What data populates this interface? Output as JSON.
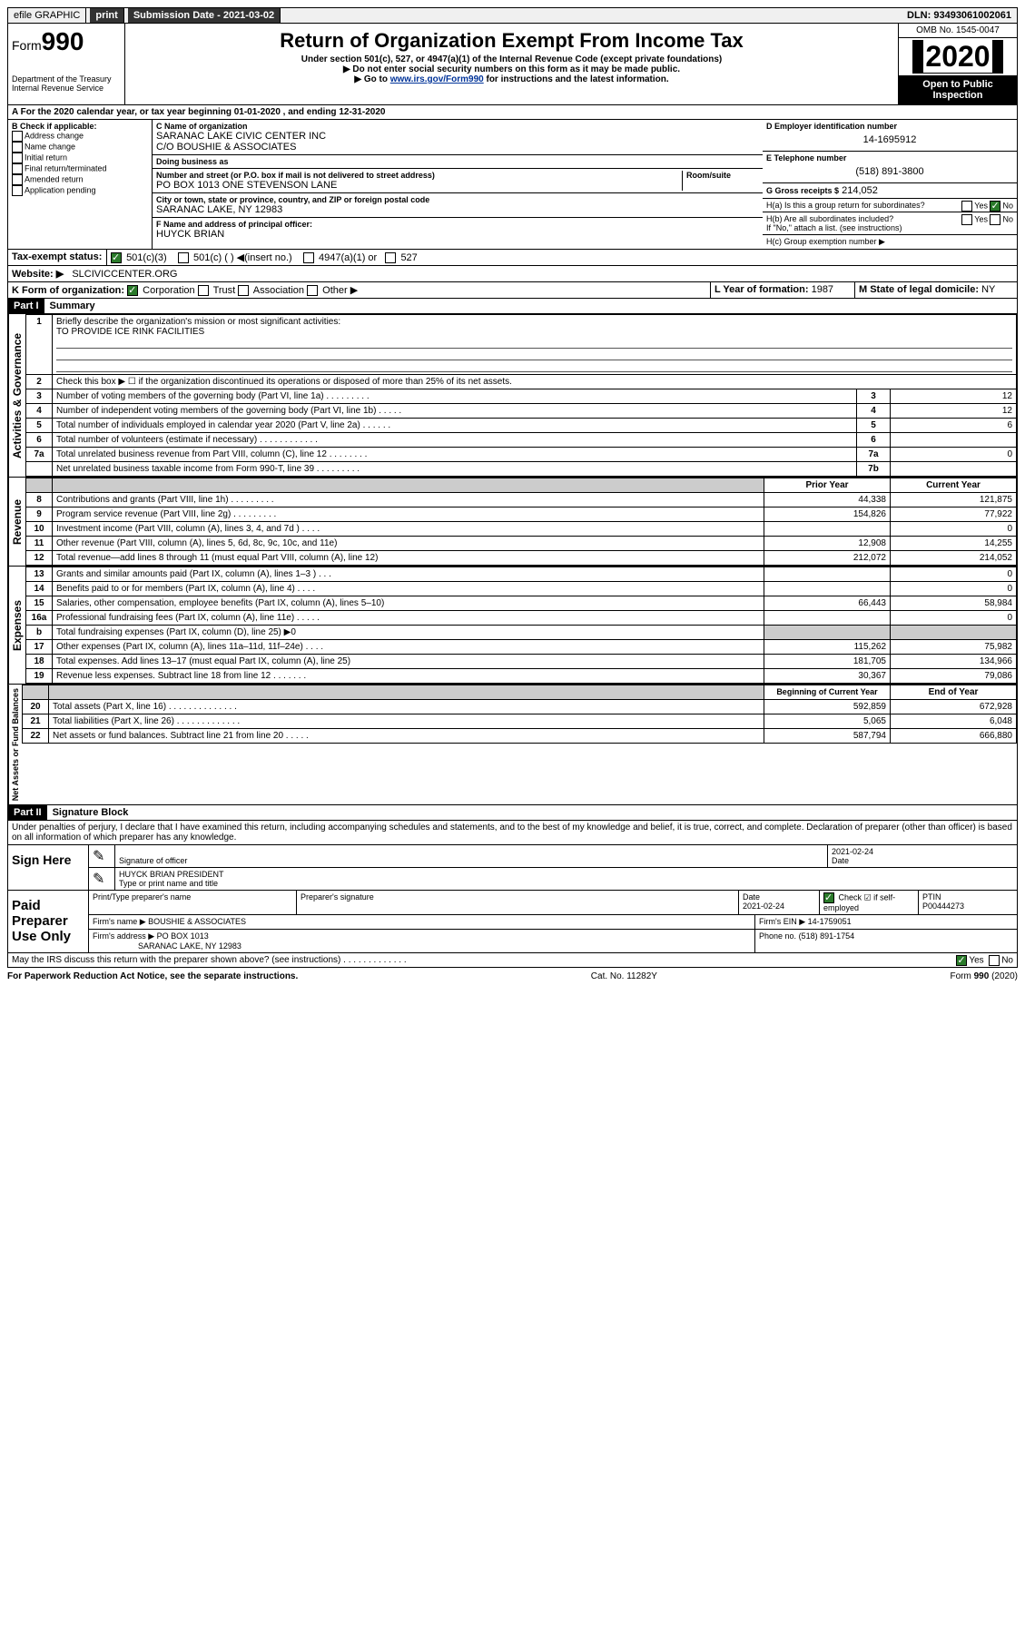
{
  "topbar": {
    "efile": "efile GRAPHIC",
    "print": "print",
    "sub_label": "Submission Date - 2021-03-02",
    "dln": "DLN: 93493061002061"
  },
  "header": {
    "form_prefix": "Form",
    "form_num": "990",
    "dept": "Department of the Treasury",
    "irs": "Internal Revenue Service",
    "title": "Return of Organization Exempt From Income Tax",
    "subtitle": "Under section 501(c), 527, or 4947(a)(1) of the Internal Revenue Code (except private foundations)",
    "note1": "▶ Do not enter social security numbers on this form as it may be made public.",
    "note2_pre": "▶ Go to ",
    "note2_link": "www.irs.gov/Form990",
    "note2_post": " for instructions and the latest information.",
    "omb": "OMB No. 1545-0047",
    "year": "2020",
    "open": "Open to Public Inspection"
  },
  "period": {
    "text": "A For the 2020 calendar year, or tax year beginning 01-01-2020    , and ending 12-31-2020"
  },
  "sectionB": {
    "title": "B Check if applicable:",
    "items": [
      "Address change",
      "Name change",
      "Initial return",
      "Final return/terminated",
      "Amended return",
      "Application pending"
    ]
  },
  "org": {
    "c_label": "C Name of organization",
    "name": "SARANAC LAKE CIVIC CENTER INC",
    "care_of": "C/O BOUSHIE & ASSOCIATES",
    "dba_label": "Doing business as",
    "addr_label": "Number and street (or P.O. box if mail is not delivered to street address)",
    "room_label": "Room/suite",
    "addr": "PO BOX 1013 ONE STEVENSON LANE",
    "city_label": "City or town, state or province, country, and ZIP or foreign postal code",
    "city": "SARANAC LAKE, NY  12983",
    "f_label": "F Name and address of principal officer:",
    "officer": "HUYCK BRIAN"
  },
  "right": {
    "d_label": "D Employer identification number",
    "ein": "14-1695912",
    "e_label": "E Telephone number",
    "phone": "(518) 891-3800",
    "g_label": "G Gross receipts $",
    "gross": "214,052",
    "ha": "H(a)  Is this a group return for subordinates?",
    "hb": "H(b)  Are all subordinates included?",
    "hb_note": "If \"No,\" attach a list. (see instructions)",
    "hc": "H(c)  Group exemption number ▶",
    "yes": "Yes",
    "no": "No"
  },
  "status": {
    "i_label": "Tax-exempt status:",
    "c3": "501(c)(3)",
    "c_other": "501(c) (  ) ◀(insert no.)",
    "a1": "4947(a)(1) or",
    "s527": "527",
    "j_label": "Website: ▶",
    "website": "SLCIVICCENTER.ORG",
    "k_label": "K Form of organization:",
    "corp": "Corporation",
    "trust": "Trust",
    "assoc": "Association",
    "other": "Other ▶",
    "l_label": "L Year of formation:",
    "year": "1987",
    "m_label": "M State of legal domicile:",
    "state": "NY"
  },
  "part1": {
    "header": "Part I",
    "title": "Summary",
    "q1": "Briefly describe the organization's mission or most significant activities:",
    "mission": "TO PROVIDE ICE RINK FACILITIES",
    "q2": "Check this box ▶ ☐  if the organization discontinued its operations or disposed of more than 25% of its net assets.",
    "lines": [
      {
        "n": "3",
        "t": "Number of voting members of the governing body (Part VI, line 1a)  .  .  .  .  .  .  .  .  .",
        "box": "3",
        "v": "12"
      },
      {
        "n": "4",
        "t": "Number of independent voting members of the governing body (Part VI, line 1b)  .  .  .  .  .",
        "box": "4",
        "v": "12"
      },
      {
        "n": "5",
        "t": "Total number of individuals employed in calendar year 2020 (Part V, line 2a)  .  .  .  .  .  .",
        "box": "5",
        "v": "6"
      },
      {
        "n": "6",
        "t": "Total number of volunteers (estimate if necessary)  .  .  .  .  .  .  .  .  .  .  .  .",
        "box": "6",
        "v": ""
      },
      {
        "n": "7a",
        "t": "Total unrelated business revenue from Part VIII, column (C), line 12  .  .  .  .  .  .  .  .",
        "box": "7a",
        "v": "0"
      },
      {
        "n": "",
        "t": "Net unrelated business taxable income from Form 990-T, line 39  .  .  .  .  .  .  .  .  .",
        "box": "7b",
        "v": ""
      }
    ],
    "prior": "Prior Year",
    "current": "Current Year",
    "rev": [
      {
        "n": "8",
        "t": "Contributions and grants (Part VIII, line 1h)  .  .  .  .  .  .  .  .  .",
        "p": "44,338",
        "c": "121,875"
      },
      {
        "n": "9",
        "t": "Program service revenue (Part VIII, line 2g)  .  .  .  .  .  .  .  .  .",
        "p": "154,826",
        "c": "77,922"
      },
      {
        "n": "10",
        "t": "Investment income (Part VIII, column (A), lines 3, 4, and 7d )  .  .  .  .",
        "p": "",
        "c": "0"
      },
      {
        "n": "11",
        "t": "Other revenue (Part VIII, column (A), lines 5, 6d, 8c, 9c, 10c, and 11e)",
        "p": "12,908",
        "c": "14,255"
      },
      {
        "n": "12",
        "t": "Total revenue—add lines 8 through 11 (must equal Part VIII, column (A), line 12)",
        "p": "212,072",
        "c": "214,052"
      }
    ],
    "exp": [
      {
        "n": "13",
        "t": "Grants and similar amounts paid (Part IX, column (A), lines 1–3 )  .  .  .",
        "p": "",
        "c": "0"
      },
      {
        "n": "14",
        "t": "Benefits paid to or for members (Part IX, column (A), line 4)  .  .  .  .",
        "p": "",
        "c": "0"
      },
      {
        "n": "15",
        "t": "Salaries, other compensation, employee benefits (Part IX, column (A), lines 5–10)",
        "p": "66,443",
        "c": "58,984"
      },
      {
        "n": "16a",
        "t": "Professional fundraising fees (Part IX, column (A), line 11e)  .  .  .  .  .",
        "p": "",
        "c": "0"
      },
      {
        "n": "b",
        "t": "Total fundraising expenses (Part IX, column (D), line 25) ▶0",
        "p": "grey",
        "c": "grey"
      },
      {
        "n": "17",
        "t": "Other expenses (Part IX, column (A), lines 11a–11d, 11f–24e)  .  .  .  .",
        "p": "115,262",
        "c": "75,982"
      },
      {
        "n": "18",
        "t": "Total expenses. Add lines 13–17 (must equal Part IX, column (A), line 25)",
        "p": "181,705",
        "c": "134,966"
      },
      {
        "n": "19",
        "t": "Revenue less expenses. Subtract line 18 from line 12  .  .  .  .  .  .  .",
        "p": "30,367",
        "c": "79,086"
      }
    ],
    "beg": "Beginning of Current Year",
    "end": "End of Year",
    "net": [
      {
        "n": "20",
        "t": "Total assets (Part X, line 16)  .  .  .  .  .  .  .  .  .  .  .  .  .  .",
        "p": "592,859",
        "c": "672,928"
      },
      {
        "n": "21",
        "t": "Total liabilities (Part X, line 26)  .  .  .  .  .  .  .  .  .  .  .  .  .",
        "p": "5,065",
        "c": "6,048"
      },
      {
        "n": "22",
        "t": "Net assets or fund balances. Subtract line 21 from line 20  .  .  .  .  .",
        "p": "587,794",
        "c": "666,880"
      }
    ],
    "vlabels": {
      "gov": "Activities & Governance",
      "rev": "Revenue",
      "exp": "Expenses",
      "net": "Net Assets or Fund Balances"
    }
  },
  "part2": {
    "header": "Part II",
    "title": "Signature Block",
    "perjury": "Under penalties of perjury, I declare that I have examined this return, including accompanying schedules and statements, and to the best of my knowledge and belief, it is true, correct, and complete. Declaration of preparer (other than officer) is based on all information of which preparer has any knowledge.",
    "sign_here": "Sign Here",
    "sig_officer": "Signature of officer",
    "date": "Date",
    "date_val": "2021-02-24",
    "officer_name": "HUYCK BRIAN  PRESIDENT",
    "type_name": "Type or print name and title",
    "paid": "Paid Preparer Use Only",
    "prep_name_label": "Print/Type preparer's name",
    "prep_sig_label": "Preparer's signature",
    "prep_date": "2021-02-24",
    "check_self": "Check ☑ if self-employed",
    "ptin_label": "PTIN",
    "ptin": "P00444273",
    "firm_name_label": "Firm's name    ▶",
    "firm_name": "BOUSHIE & ASSOCIATES",
    "firm_ein": "Firm's EIN ▶ 14-1759051",
    "firm_addr_label": "Firm's address ▶",
    "firm_addr": "PO BOX 1013",
    "firm_city": "SARANAC LAKE, NY  12983",
    "phone_label": "Phone no.",
    "phone": "(518) 891-1754",
    "discuss": "May the IRS discuss this return with the preparer shown above? (see instructions)  .  .  .  .  .  .  .  .  .  .  .  .  ."
  },
  "footer": {
    "left": "For Paperwork Reduction Act Notice, see the separate instructions.",
    "mid": "Cat. No. 11282Y",
    "right": "Form 990 (2020)"
  }
}
